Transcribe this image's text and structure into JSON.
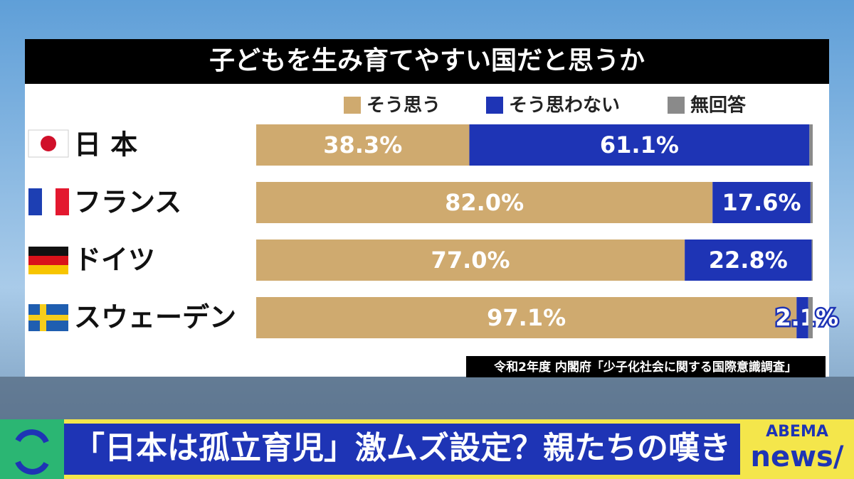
{
  "chart_data": {
    "type": "stacked-hbar",
    "title": "子どもを生み育てやすい国だと思うか",
    "categories": [
      "日 本",
      "フランス",
      "ドイツ",
      "スウェーデン"
    ],
    "series": [
      {
        "name": "そう思う",
        "color": "#cfaa6f",
        "values": [
          38.3,
          82.0,
          77.0,
          97.1
        ],
        "value_labels": [
          "38.3%",
          "82.0%",
          "77.0%",
          "97.1%"
        ]
      },
      {
        "name": "そう思わない",
        "color": "#1e34b5",
        "values": [
          61.1,
          17.6,
          22.8,
          2.1
        ],
        "value_labels": [
          "61.1%",
          "17.6%",
          "22.8%",
          "2.1%"
        ]
      },
      {
        "name": "無回答",
        "color": "#8a8a8a",
        "values": [
          0.6,
          0.4,
          0.2,
          0.8
        ]
      }
    ],
    "xlim": [
      0,
      100
    ],
    "source": "令和2年度 内閣府「少子化社会に関する国際意識調査」"
  },
  "banner": "「日本は孤立育児」激ムズ設定？親たちの嘆き",
  "logo": {
    "brand": "ABEMA",
    "sub": "news/"
  }
}
